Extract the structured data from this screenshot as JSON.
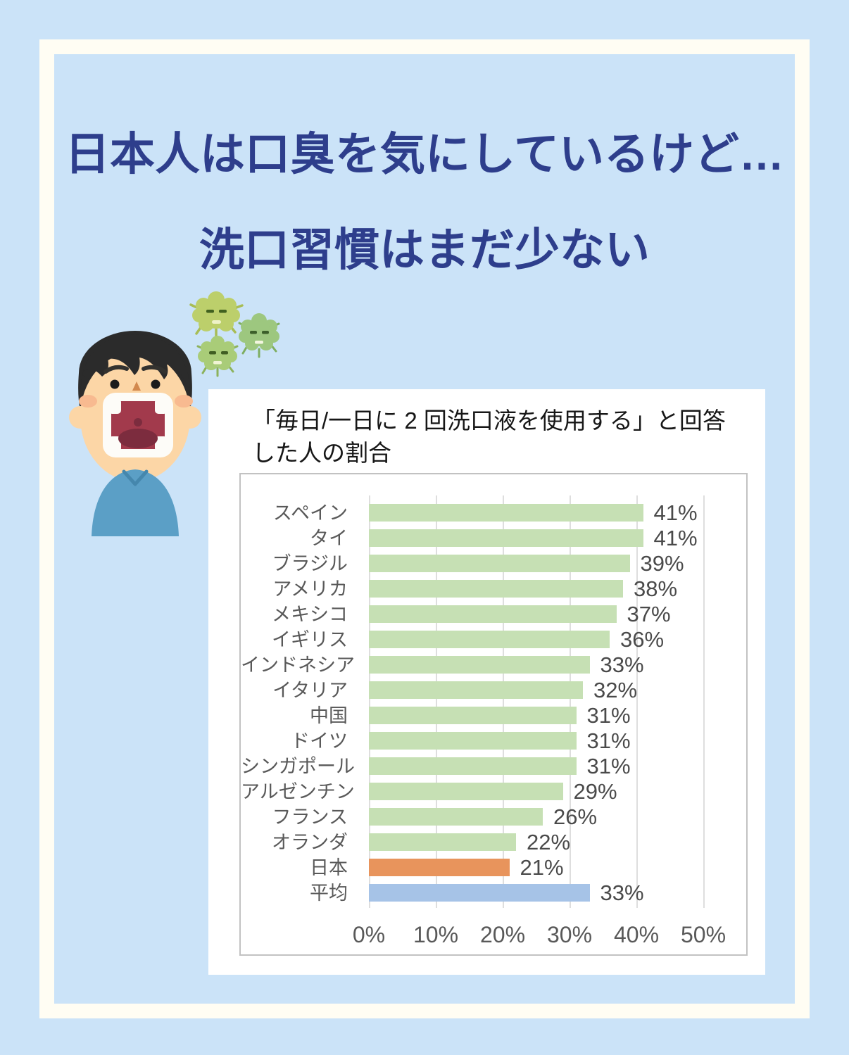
{
  "page": {
    "background_color": "#cbe3f8",
    "frame_color": "#fffdf3",
    "title_color": "#2e3e8c",
    "title_line1": "日本人は口臭を気にしているけど…",
    "title_line2": "洗口習慣はまだ少ない"
  },
  "illustrations": {
    "person": "man-with-open-mouth-bad-breath",
    "germs": "bad-breath-germ-characters"
  },
  "chart_data": {
    "type": "bar",
    "orientation": "horizontal",
    "title": "「毎日/一日に 2 回洗口液を使用する」と回答した人の割合",
    "xlabel": "",
    "ylabel": "",
    "xlim": [
      0,
      55
    ],
    "grid": true,
    "legend": false,
    "axis_ticks": [
      {
        "value": 0,
        "label": "0%"
      },
      {
        "value": 10,
        "label": "10%"
      },
      {
        "value": 20,
        "label": "20%"
      },
      {
        "value": 30,
        "label": "30%"
      },
      {
        "value": 40,
        "label": "40%"
      },
      {
        "value": 50,
        "label": "50%"
      }
    ],
    "colors": {
      "green": "#c6e0b4",
      "orange": "#e8945c",
      "blue": "#a6c3e7"
    },
    "categories": [
      {
        "label": "スペイン",
        "value": 41,
        "value_label": "41%",
        "color": "green"
      },
      {
        "label": "タイ",
        "value": 41,
        "value_label": "41%",
        "color": "green"
      },
      {
        "label": "ブラジル",
        "value": 39,
        "value_label": "39%",
        "color": "green"
      },
      {
        "label": "アメリカ",
        "value": 38,
        "value_label": "38%",
        "color": "green"
      },
      {
        "label": "メキシコ",
        "value": 37,
        "value_label": "37%",
        "color": "green"
      },
      {
        "label": "イギリス",
        "value": 36,
        "value_label": "36%",
        "color": "green"
      },
      {
        "label": "インドネシア",
        "value": 33,
        "value_label": "33%",
        "color": "green"
      },
      {
        "label": "イタリア",
        "value": 32,
        "value_label": "32%",
        "color": "green"
      },
      {
        "label": "中国",
        "value": 31,
        "value_label": "31%",
        "color": "green"
      },
      {
        "label": "ドイツ",
        "value": 31,
        "value_label": "31%",
        "color": "green"
      },
      {
        "label": "シンガポール",
        "value": 31,
        "value_label": "31%",
        "color": "green"
      },
      {
        "label": "アルゼンチン",
        "value": 29,
        "value_label": "29%",
        "color": "green"
      },
      {
        "label": "フランス",
        "value": 26,
        "value_label": "26%",
        "color": "green"
      },
      {
        "label": "オランダ",
        "value": 22,
        "value_label": "22%",
        "color": "green"
      },
      {
        "label": "日本",
        "value": 21,
        "value_label": "21%",
        "color": "orange"
      },
      {
        "label": "平均",
        "value": 33,
        "value_label": "33%",
        "color": "blue"
      }
    ]
  }
}
